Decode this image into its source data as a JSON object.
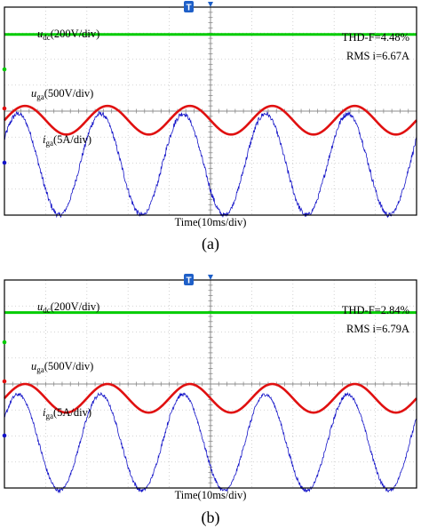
{
  "colors": {
    "udc": "#00cc00",
    "uga": "#e01010",
    "iga": "#1414c8",
    "grid": "#c8c8c8",
    "frame": "#000000"
  },
  "chart_data": [
    {
      "type": "line",
      "panel_caption": "(a)",
      "xlabel": "Time(10ms/div)",
      "labels": {
        "udc": {
          "main": "u",
          "sub": "dc",
          "rest": "(200V/div)"
        },
        "uga": {
          "main": "u",
          "sub": "ga",
          "rest": "(500V/div)"
        },
        "iga": {
          "main": "i",
          "sub": "ga",
          "rest": "(5A/div)"
        }
      },
      "annotations": [
        "THD-F=4.48%",
        "RMS i=6.67A"
      ],
      "marker": "T",
      "x": {
        "divisions": 10,
        "unit": "10ms/div"
      },
      "y": {
        "divisions": 8
      },
      "series": [
        {
          "name": "udc",
          "kind": "dc",
          "level_div": 6.95
        },
        {
          "name": "uga",
          "kind": "sine",
          "center_div": 3.65,
          "amplitude_div": 0.55,
          "cycles": 5,
          "phase_deg": 0
        },
        {
          "name": "iga",
          "kind": "sine",
          "center_div": 1.95,
          "amplitude_div": 1.95,
          "cycles": 5,
          "phase_deg": 30,
          "noise_div": 0.12
        }
      ]
    },
    {
      "type": "line",
      "panel_caption": "(b)",
      "xlabel": "Time(10ms/div)",
      "labels": {
        "udc": {
          "main": "u",
          "sub": "dc",
          "rest": "(200V/div)"
        },
        "uga": {
          "main": "u",
          "sub": "ga",
          "rest": "(500V/div)"
        },
        "iga": {
          "main": "i",
          "sub": "ga",
          "rest": "(5A/div)"
        }
      },
      "annotations": [
        "THD-F=2.84%",
        "RMS i=6.79A"
      ],
      "marker": "T",
      "x": {
        "divisions": 10,
        "unit": "10ms/div"
      },
      "y": {
        "divisions": 8
      },
      "series": [
        {
          "name": "udc",
          "kind": "dc",
          "level_div": 6.75
        },
        {
          "name": "uga",
          "kind": "sine",
          "center_div": 3.45,
          "amplitude_div": 0.55,
          "cycles": 5,
          "phase_deg": 0
        },
        {
          "name": "iga",
          "kind": "sine",
          "center_div": 1.75,
          "amplitude_div": 1.85,
          "cycles": 5,
          "phase_deg": 30,
          "noise_div": 0.09
        }
      ]
    }
  ]
}
